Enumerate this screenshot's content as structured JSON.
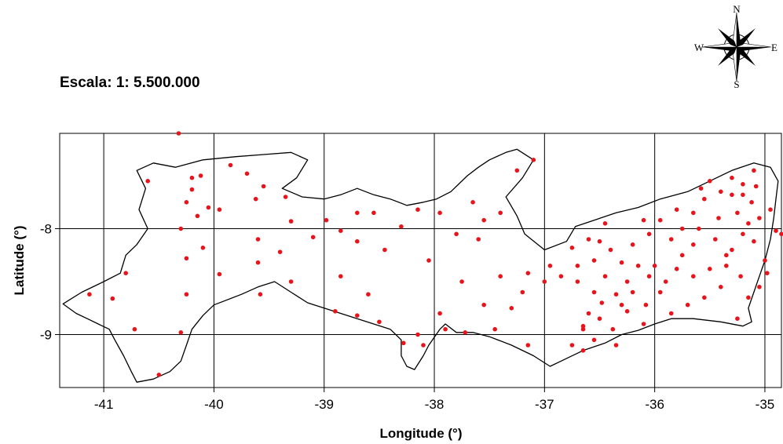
{
  "scale_label": "Escala: 1: 5.500.000",
  "compass": {
    "north": "N",
    "south": "S",
    "east": "E",
    "west": "W"
  },
  "chart_data": {
    "type": "scatter",
    "xlabel": "Longitude (°)",
    "ylabel": "Latitude (°)",
    "xlim": [
      -41.4,
      -34.85
    ],
    "ylim": [
      -9.5,
      -7.1
    ],
    "xticks": [
      -41,
      -40,
      -39,
      -38,
      -37,
      -36,
      -35
    ],
    "yticks": [
      -8,
      -9
    ],
    "grid": true,
    "point_color": "#e8141b",
    "boundary_color": "#000000",
    "boundary": [
      [
        -41.37,
        -8.71
      ],
      [
        -41.2,
        -8.6
      ],
      [
        -41.0,
        -8.5
      ],
      [
        -40.85,
        -8.42
      ],
      [
        -40.8,
        -8.25
      ],
      [
        -40.7,
        -8.15
      ],
      [
        -40.6,
        -8.0
      ],
      [
        -40.68,
        -7.82
      ],
      [
        -40.62,
        -7.62
      ],
      [
        -40.7,
        -7.45
      ],
      [
        -40.55,
        -7.38
      ],
      [
        -40.35,
        -7.42
      ],
      [
        -40.1,
        -7.35
      ],
      [
        -39.8,
        -7.32
      ],
      [
        -39.55,
        -7.3
      ],
      [
        -39.3,
        -7.28
      ],
      [
        -39.15,
        -7.35
      ],
      [
        -39.25,
        -7.52
      ],
      [
        -39.38,
        -7.62
      ],
      [
        -39.2,
        -7.7
      ],
      [
        -39.0,
        -7.72
      ],
      [
        -38.85,
        -7.68
      ],
      [
        -38.7,
        -7.62
      ],
      [
        -38.55,
        -7.68
      ],
      [
        -38.4,
        -7.72
      ],
      [
        -38.25,
        -7.78
      ],
      [
        -38.1,
        -7.75
      ],
      [
        -37.98,
        -7.72
      ],
      [
        -37.85,
        -7.65
      ],
      [
        -37.7,
        -7.5
      ],
      [
        -37.6,
        -7.42
      ],
      [
        -37.5,
        -7.35
      ],
      [
        -37.35,
        -7.28
      ],
      [
        -37.25,
        -7.25
      ],
      [
        -37.1,
        -7.35
      ],
      [
        -37.2,
        -7.52
      ],
      [
        -37.35,
        -7.7
      ],
      [
        -37.25,
        -7.88
      ],
      [
        -37.18,
        -8.05
      ],
      [
        -37.0,
        -8.2
      ],
      [
        -36.8,
        -8.12
      ],
      [
        -36.72,
        -7.98
      ],
      [
        -36.55,
        -7.92
      ],
      [
        -36.35,
        -7.85
      ],
      [
        -36.15,
        -7.8
      ],
      [
        -35.95,
        -7.72
      ],
      [
        -35.7,
        -7.65
      ],
      [
        -35.5,
        -7.55
      ],
      [
        -35.3,
        -7.45
      ],
      [
        -35.1,
        -7.38
      ],
      [
        -34.95,
        -7.42
      ],
      [
        -34.88,
        -7.55
      ],
      [
        -34.9,
        -7.72
      ],
      [
        -34.92,
        -7.9
      ],
      [
        -34.95,
        -8.1
      ],
      [
        -35.0,
        -8.3
      ],
      [
        -35.05,
        -8.45
      ],
      [
        -35.1,
        -8.6
      ],
      [
        -35.15,
        -8.75
      ],
      [
        -35.12,
        -8.88
      ],
      [
        -35.2,
        -8.92
      ],
      [
        -35.4,
        -8.88
      ],
      [
        -35.65,
        -8.85
      ],
      [
        -35.85,
        -8.85
      ],
      [
        -36.0,
        -8.9
      ],
      [
        -36.15,
        -8.96
      ],
      [
        -36.3,
        -9.0
      ],
      [
        -36.45,
        -9.08
      ],
      [
        -36.65,
        -9.15
      ],
      [
        -36.85,
        -9.25
      ],
      [
        -36.95,
        -9.3
      ],
      [
        -37.1,
        -9.2
      ],
      [
        -37.3,
        -9.1
      ],
      [
        -37.5,
        -9.02
      ],
      [
        -37.65,
        -8.98
      ],
      [
        -37.8,
        -8.98
      ],
      [
        -37.9,
        -8.9
      ],
      [
        -37.95,
        -8.95
      ],
      [
        -38.05,
        -9.1
      ],
      [
        -38.1,
        -9.2
      ],
      [
        -38.18,
        -9.33
      ],
      [
        -38.25,
        -9.3
      ],
      [
        -38.3,
        -9.2
      ],
      [
        -38.3,
        -9.05
      ],
      [
        -38.4,
        -8.95
      ],
      [
        -38.55,
        -8.9
      ],
      [
        -38.7,
        -8.85
      ],
      [
        -38.85,
        -8.8
      ],
      [
        -39.0,
        -8.75
      ],
      [
        -39.15,
        -8.7
      ],
      [
        -39.3,
        -8.6
      ],
      [
        -39.45,
        -8.5
      ],
      [
        -39.6,
        -8.55
      ],
      [
        -39.75,
        -8.62
      ],
      [
        -39.9,
        -8.68
      ],
      [
        -40.0,
        -8.72
      ],
      [
        -40.1,
        -8.82
      ],
      [
        -40.2,
        -8.95
      ],
      [
        -40.25,
        -9.1
      ],
      [
        -40.3,
        -9.25
      ],
      [
        -40.4,
        -9.35
      ],
      [
        -40.55,
        -9.42
      ],
      [
        -40.7,
        -9.45
      ],
      [
        -40.75,
        -9.35
      ],
      [
        -40.82,
        -9.2
      ],
      [
        -40.9,
        -9.05
      ],
      [
        -40.95,
        -8.95
      ],
      [
        -41.05,
        -8.9
      ],
      [
        -41.15,
        -8.85
      ],
      [
        -41.25,
        -8.8
      ],
      [
        -41.37,
        -8.71
      ]
    ],
    "points": [
      [
        -40.32,
        -7.1
      ],
      [
        -40.6,
        -7.55
      ],
      [
        -40.2,
        -7.52
      ],
      [
        -40.12,
        -7.5
      ],
      [
        -40.2,
        -7.63
      ],
      [
        -39.85,
        -7.4
      ],
      [
        -39.7,
        -7.48
      ],
      [
        -39.55,
        -7.6
      ],
      [
        -39.62,
        -7.72
      ],
      [
        -40.25,
        -7.75
      ],
      [
        -40.05,
        -7.8
      ],
      [
        -39.95,
        -7.82
      ],
      [
        -40.15,
        -7.88
      ],
      [
        -40.3,
        -8.0
      ],
      [
        -40.1,
        -8.18
      ],
      [
        -40.25,
        -8.28
      ],
      [
        -39.6,
        -8.1
      ],
      [
        -39.35,
        -7.7
      ],
      [
        -39.3,
        -7.93
      ],
      [
        -39.1,
        -8.08
      ],
      [
        -39.4,
        -8.22
      ],
      [
        -39.6,
        -8.32
      ],
      [
        -39.95,
        -8.43
      ],
      [
        -39.3,
        -8.5
      ],
      [
        -39.58,
        -8.62
      ],
      [
        -40.25,
        -8.62
      ],
      [
        -40.92,
        -8.66
      ],
      [
        -41.13,
        -8.62
      ],
      [
        -40.8,
        -8.42
      ],
      [
        -40.72,
        -8.95
      ],
      [
        -40.3,
        -8.98
      ],
      [
        -40.5,
        -9.38
      ],
      [
        -38.98,
        -7.92
      ],
      [
        -38.85,
        -8.02
      ],
      [
        -38.7,
        -7.85
      ],
      [
        -38.55,
        -7.85
      ],
      [
        -38.3,
        -7.98
      ],
      [
        -38.15,
        -7.82
      ],
      [
        -37.95,
        -7.85
      ],
      [
        -37.8,
        -8.05
      ],
      [
        -37.65,
        -7.75
      ],
      [
        -37.55,
        -7.92
      ],
      [
        -37.4,
        -7.85
      ],
      [
        -37.25,
        -7.45
      ],
      [
        -37.1,
        -7.35
      ],
      [
        -38.7,
        -8.12
      ],
      [
        -38.45,
        -8.2
      ],
      [
        -38.05,
        -8.3
      ],
      [
        -38.85,
        -8.45
      ],
      [
        -38.6,
        -8.62
      ],
      [
        -38.7,
        -8.82
      ],
      [
        -38.5,
        -8.88
      ],
      [
        -38.9,
        -8.78
      ],
      [
        -37.95,
        -8.8
      ],
      [
        -37.75,
        -8.5
      ],
      [
        -37.6,
        -8.1
      ],
      [
        -37.4,
        -8.45
      ],
      [
        -37.2,
        -8.6
      ],
      [
        -37.0,
        -8.5
      ],
      [
        -37.15,
        -8.42
      ],
      [
        -37.55,
        -8.72
      ],
      [
        -37.45,
        -8.95
      ],
      [
        -37.3,
        -8.75
      ],
      [
        -37.9,
        -8.95
      ],
      [
        -37.72,
        -8.98
      ],
      [
        -38.15,
        -9.0
      ],
      [
        -38.28,
        -9.08
      ],
      [
        -38.1,
        -9.1
      ],
      [
        -37.15,
        -9.1
      ],
      [
        -36.95,
        -8.35
      ],
      [
        -36.85,
        -8.45
      ],
      [
        -36.75,
        -8.18
      ],
      [
        -36.7,
        -8.35
      ],
      [
        -36.6,
        -8.1
      ],
      [
        -36.5,
        -8.12
      ],
      [
        -36.45,
        -7.95
      ],
      [
        -36.55,
        -8.3
      ],
      [
        -36.4,
        -8.2
      ],
      [
        -36.3,
        -8.32
      ],
      [
        -36.2,
        -8.15
      ],
      [
        -36.05,
        -8.05
      ],
      [
        -35.95,
        -7.92
      ],
      [
        -36.1,
        -7.92
      ],
      [
        -35.8,
        -7.82
      ],
      [
        -35.75,
        -8.0
      ],
      [
        -35.65,
        -7.85
      ],
      [
        -35.55,
        -7.72
      ],
      [
        -35.5,
        -7.55
      ],
      [
        -35.4,
        -7.65
      ],
      [
        -35.3,
        -7.52
      ],
      [
        -35.2,
        -7.58
      ],
      [
        -35.1,
        -7.45
      ],
      [
        -35.08,
        -7.6
      ],
      [
        -35.12,
        -7.75
      ],
      [
        -35.25,
        -7.85
      ],
      [
        -35.2,
        -8.05
      ],
      [
        -35.1,
        -8.12
      ],
      [
        -35.0,
        -8.3
      ],
      [
        -34.95,
        -7.82
      ],
      [
        -34.9,
        -8.02
      ],
      [
        -35.3,
        -8.2
      ],
      [
        -35.45,
        -8.1
      ],
      [
        -35.6,
        -8.0
      ],
      [
        -35.75,
        -8.25
      ],
      [
        -35.65,
        -8.45
      ],
      [
        -35.5,
        -8.38
      ],
      [
        -35.35,
        -8.35
      ],
      [
        -35.4,
        -8.55
      ],
      [
        -35.55,
        -8.65
      ],
      [
        -35.7,
        -8.72
      ],
      [
        -35.85,
        -8.8
      ],
      [
        -35.95,
        -8.6
      ],
      [
        -36.05,
        -8.45
      ],
      [
        -36.15,
        -8.35
      ],
      [
        -36.25,
        -8.5
      ],
      [
        -36.35,
        -8.62
      ],
      [
        -36.48,
        -8.7
      ],
      [
        -36.6,
        -8.8
      ],
      [
        -36.65,
        -8.92
      ],
      [
        -36.75,
        -9.1
      ],
      [
        -36.65,
        -9.15
      ],
      [
        -36.55,
        -9.05
      ],
      [
        -36.35,
        -9.1
      ],
      [
        -36.3,
        -8.72
      ],
      [
        -36.2,
        -8.6
      ],
      [
        -36.08,
        -8.72
      ],
      [
        -36.1,
        -8.9
      ],
      [
        -35.9,
        -8.5
      ],
      [
        -35.8,
        -8.38
      ],
      [
        -35.25,
        -8.85
      ],
      [
        -35.15,
        -8.65
      ],
      [
        -35.05,
        -8.55
      ],
      [
        -35.22,
        -8.45
      ],
      [
        -35.35,
        -8.25
      ],
      [
        -35.2,
        -7.68
      ],
      [
        -35.05,
        -7.9
      ],
      [
        -35.42,
        -7.9
      ],
      [
        -35.58,
        -7.62
      ],
      [
        -35.3,
        -7.68
      ],
      [
        -35.15,
        -7.95
      ],
      [
        -36.45,
        -8.45
      ],
      [
        -36.55,
        -8.6
      ],
      [
        -36.7,
        -8.5
      ],
      [
        -36.38,
        -8.95
      ],
      [
        -36.0,
        -8.35
      ],
      [
        -35.85,
        -8.1
      ],
      [
        -35.65,
        -8.15
      ],
      [
        -34.98,
        -8.42
      ],
      [
        -34.85,
        -8.05
      ],
      [
        -36.65,
        -8.95
      ],
      [
        -36.5,
        -8.85
      ],
      [
        -36.25,
        -8.78
      ]
    ]
  }
}
